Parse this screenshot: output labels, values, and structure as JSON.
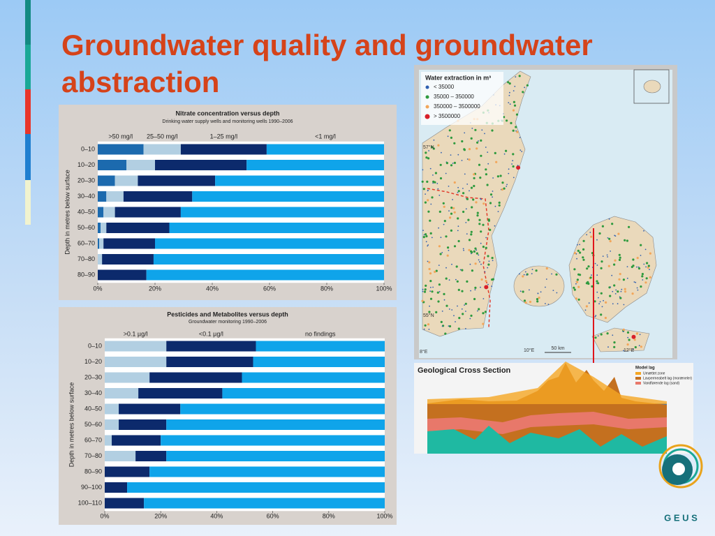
{
  "title": "Groundwater quality and groundwater abstraction",
  "chart_data": [
    {
      "type": "bar",
      "orientation": "horizontal",
      "stacked": true,
      "title": "Nitrate concentration versus depth",
      "subtitle": "Drinking water supply wells and monitoring wells 1990–2006",
      "y_label": "Depth in metres below surface",
      "categories": [
        "0–10",
        "10–20",
        "20–30",
        "30–40",
        "40–50",
        "50–60",
        "60–70",
        "70–80",
        "80–90"
      ],
      "series": [
        {
          "name": ">50 mg/l",
          "color": "#1c6aae",
          "values": [
            16,
            10,
            6,
            3,
            2,
            1,
            0.5,
            0,
            0
          ]
        },
        {
          "name": "25–50 mg/l",
          "color": "#b2cfe2",
          "values": [
            13,
            10,
            8,
            6,
            4,
            2,
            1.5,
            1.5,
            0
          ]
        },
        {
          "name": "1–25 mg/l",
          "color": "#0c2a6c",
          "values": [
            30,
            32,
            27,
            24,
            23,
            22,
            18,
            18,
            17
          ]
        },
        {
          "name": "<1 mg/l",
          "color": "#0fa4ea",
          "values": [
            41,
            48,
            59,
            67,
            71,
            75,
            80,
            80.5,
            83
          ]
        }
      ],
      "xlim": [
        0,
        100
      ],
      "xticks": [
        {
          "value": 0,
          "label": "0%"
        },
        {
          "value": 20,
          "label": "20%"
        },
        {
          "value": 40,
          "label": "40%"
        },
        {
          "value": 60,
          "label": "60%"
        },
        {
          "value": 80,
          "label": "80%"
        },
        {
          "value": 100,
          "label": "100%"
        }
      ]
    },
    {
      "type": "bar",
      "orientation": "horizontal",
      "stacked": true,
      "title": "Pesticides and Metabolites versus depth",
      "subtitle": "Groundwater monitoring 1990–2006",
      "y_label": "Depth in metres below surface",
      "categories": [
        "0–10",
        "10–20",
        "20–30",
        "30–40",
        "40–50",
        "50–60",
        "60–70",
        "70–80",
        "80–90",
        "90–100",
        "100–110"
      ],
      "series": [
        {
          "name": ">0.1 µg/l",
          "color": "#b2cfe2",
          "values": [
            22,
            22,
            16,
            12,
            5,
            5,
            2.5,
            11,
            0,
            0,
            0
          ]
        },
        {
          "name": "<0.1 µg/l",
          "color": "#0c2a6c",
          "values": [
            32,
            31,
            33,
            30,
            22,
            17,
            17.5,
            11,
            16,
            8,
            14
          ]
        },
        {
          "name": "no findings",
          "color": "#0fa4ea",
          "values": [
            46,
            47,
            51,
            58,
            73,
            78,
            80,
            78,
            84,
            92,
            86
          ]
        }
      ],
      "xlim": [
        0,
        100
      ],
      "xticks": [
        {
          "value": 0,
          "label": "0%"
        },
        {
          "value": 20,
          "label": "20%"
        },
        {
          "value": 40,
          "label": "40%"
        },
        {
          "value": 60,
          "label": "60%"
        },
        {
          "value": 80,
          "label": "80%"
        },
        {
          "value": 100,
          "label": "100%"
        }
      ]
    }
  ],
  "map": {
    "legend_title": "Water extraction in m³",
    "legend": [
      {
        "label": "< 35000",
        "color": "#2f5fb0"
      },
      {
        "label": "35000 – 350000",
        "color": "#2e9a3e"
      },
      {
        "label": "350000 – 3500000",
        "color": "#f2a65a"
      },
      {
        "label": "> 3500000",
        "color": "#d8202a"
      }
    ],
    "lat_labels": [
      "57°N",
      "55°N"
    ],
    "lon_labels": [
      "8°E",
      "10°E",
      "12°E"
    ],
    "scale_label": "50 km"
  },
  "cross_section": {
    "title": "Geological Cross Section",
    "legend_title": "Model lag",
    "legend": [
      "Umættet zone",
      "Lavpermeabelt lag (moræneler)",
      "Vandførende lag (sand)"
    ]
  },
  "logo": {
    "text": "G E U S"
  }
}
